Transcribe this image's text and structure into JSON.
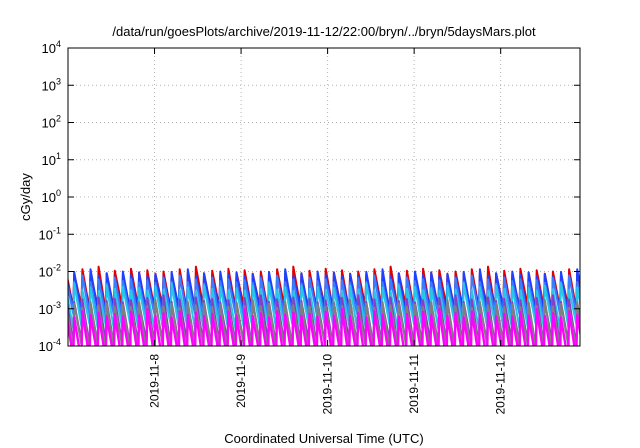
{
  "chart_data": {
    "type": "line",
    "title": "/data/run/goesPlots/archive/2019-11-12/22:00/bryn/../bryn/5daysMars.plot",
    "xlabel": "Coordinated Universal Time (UTC)",
    "ylabel": "cGy/day",
    "y_scale": "log",
    "ylim": [
      0.0001,
      10000
    ],
    "y_ticks": [
      {
        "base": "10",
        "exp": "4"
      },
      {
        "base": "10",
        "exp": "3"
      },
      {
        "base": "10",
        "exp": "2"
      },
      {
        "base": "10",
        "exp": "1"
      },
      {
        "base": "10",
        "exp": "0"
      },
      {
        "base": "10",
        "exp": "-1"
      },
      {
        "base": "10",
        "exp": "-2"
      },
      {
        "base": "10",
        "exp": "-3"
      },
      {
        "base": "10",
        "exp": "-4"
      }
    ],
    "x_domain": [
      "2019-11-07T00:00",
      "2019-11-12T22:00"
    ],
    "x_ticks": [
      "2019-11-8",
      "2019-11-9",
      "2019-11-10",
      "2019-11-11",
      "2019-11-12"
    ],
    "grid": true,
    "legend": "none",
    "sawtooth_period_hours": 2.25,
    "series": [
      {
        "color": "#e00000",
        "peak": 0.01,
        "trough": 0.00105,
        "width": 2.0
      },
      {
        "color": "#1e40ff",
        "peak": 0.0085,
        "trough": 0.00088,
        "width": 2.0
      },
      {
        "color": "#3c7dff",
        "peak": 0.0058,
        "trough": 0.00062,
        "width": 2.0
      },
      {
        "color": "#25c6e6",
        "peak": 0.0036,
        "trough": 0.00034,
        "width": 2.0
      },
      {
        "color": "#8a3cc6",
        "peak": 0.0017,
        "trough": 0.00012,
        "width": 2.0
      },
      {
        "color": "#7f7f7f",
        "peak": 0.0013,
        "trough": 9.5e-05,
        "width": 2.0
      },
      {
        "color": "#ff00ff",
        "peak": 0.00072,
        "trough": 4.5e-05,
        "width": 2.4
      }
    ]
  }
}
